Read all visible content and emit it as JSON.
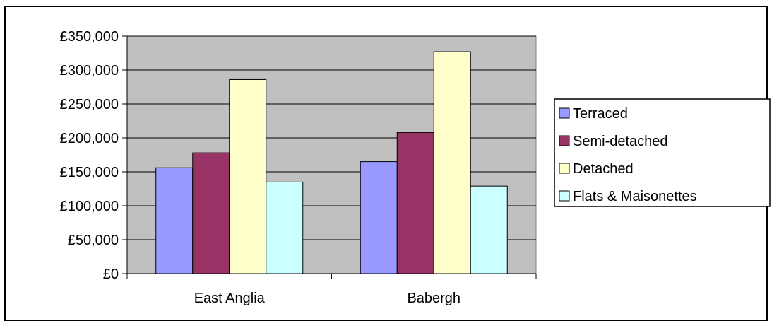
{
  "chart_data": {
    "type": "bar",
    "title": "",
    "xlabel": "",
    "ylabel": "",
    "categories": [
      "East Anglia",
      "Babergh"
    ],
    "series": [
      {
        "name": "Terraced",
        "values": [
          156000,
          165000
        ],
        "color": "#9999ff"
      },
      {
        "name": "Semi-detached",
        "values": [
          178000,
          208000
        ],
        "color": "#993366"
      },
      {
        "name": "Detached",
        "values": [
          286000,
          327000
        ],
        "color": "#ffffcc"
      },
      {
        "name": "Flats & Maisonettes",
        "values": [
          135000,
          129000
        ],
        "color": "#ccffff"
      }
    ],
    "ylim": [
      0,
      350000
    ],
    "yticks": [
      0,
      50000,
      100000,
      150000,
      200000,
      250000,
      300000,
      350000
    ],
    "ytick_labels": [
      "£0",
      "£50,000",
      "£100,000",
      "£150,000",
      "£200,000",
      "£250,000",
      "£300,000",
      "£350,000"
    ],
    "grid": true,
    "plot_background": "#c0c0c0",
    "legend_position": "right"
  }
}
